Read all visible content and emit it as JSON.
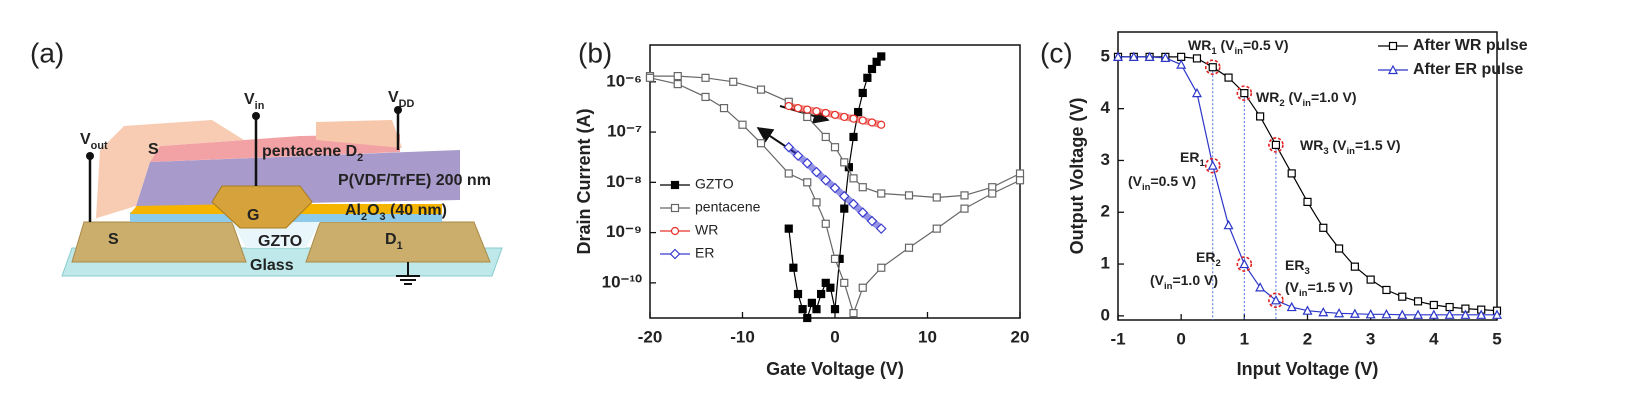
{
  "diagram": {
    "panel_label": "(a)",
    "labels": [
      [
        {
          "text": "V"
        },
        {
          "text": "out",
          "sub": true
        }
      ],
      [
        {
          "text": "V"
        },
        {
          "text": "in",
          "sub": true
        }
      ],
      [
        {
          "text": "V"
        },
        {
          "text": "DD",
          "sub": true
        }
      ],
      [
        {
          "text": "S"
        }
      ],
      [
        {
          "text": "pentacene "
        },
        {
          "text": "D"
        },
        {
          "text": "2",
          "sub": true
        }
      ],
      [
        {
          "text": "P(VDF/TrFE) 200 nm"
        }
      ],
      [
        {
          "text": "G"
        }
      ],
      [
        {
          "text": "Al"
        },
        {
          "text": "2",
          "sub": true
        },
        {
          "text": "O"
        },
        {
          "text": "3",
          "sub": true
        },
        {
          "text": " (40 nm)"
        }
      ],
      [
        {
          "text": "S"
        }
      ],
      [
        {
          "text": "GZTO"
        }
      ],
      [
        {
          "text": "D"
        },
        {
          "text": "1",
          "sub": true
        }
      ],
      [
        {
          "text": "Glass"
        }
      ]
    ]
  },
  "chart_data": [
    {
      "type": "line",
      "panel_label": "(b)",
      "x_label": "Gate Voltage (V)",
      "y_label": "Drain Current (A)",
      "xlim": [
        -20,
        20
      ],
      "xticks": [
        -20,
        -10,
        0,
        10,
        20
      ],
      "ylim": [
        2e-11,
        5.4e-06
      ],
      "y_scale": "log",
      "yticks": [
        {
          "value": 1e-10,
          "label": "10⁻¹⁰"
        },
        {
          "value": 1e-09,
          "label": "10⁻⁹"
        },
        {
          "value": 1e-08,
          "label": "10⁻⁸"
        },
        {
          "value": 1e-07,
          "label": "10⁻⁷"
        },
        {
          "value": 1e-06,
          "label": "10⁻⁶"
        }
      ],
      "legend": "left",
      "series": [
        {
          "name": "GZTO",
          "color": "#000000",
          "marker": "square-filled",
          "x": [
            -5,
            -4.5,
            -4,
            -3.5,
            -3,
            -2.5,
            -2,
            -1.5,
            -1,
            -0.5,
            0,
            0.5,
            1,
            1.5,
            2,
            2.5,
            3,
            3.5,
            4,
            4.5,
            5
          ],
          "values": [
            1.2e-09,
            2e-10,
            6e-11,
            3e-11,
            2e-11,
            4e-11,
            3e-11,
            6e-11,
            1e-10,
            8e-11,
            3e-11,
            3e-10,
            3e-09,
            2e-08,
            8e-08,
            2.5e-07,
            6e-07,
            1.2e-06,
            1.8e-06,
            2.5e-06,
            3.2e-06
          ]
        },
        {
          "name": "pentacene",
          "color": "#666666",
          "marker": "square-open",
          "x": [
            -20,
            -17,
            -14,
            -11,
            -8,
            -5,
            -3,
            -1,
            0,
            1,
            2,
            3,
            5,
            8,
            11,
            14,
            17,
            20,
            20,
            17,
            14,
            11,
            8,
            5,
            3,
            2,
            1,
            0,
            -1,
            -2,
            -3,
            -5,
            -8,
            -10,
            -12,
            -14,
            -17,
            -20
          ],
          "values": [
            1.3e-06,
            1.3e-06,
            1.2e-06,
            1e-06,
            7e-07,
            4e-07,
            2e-07,
            8e-08,
            5e-08,
            2.5e-08,
            1.2e-08,
            8e-09,
            6e-09,
            5.5e-09,
            5e-09,
            5.5e-09,
            8e-09,
            1.5e-08,
            1.1e-08,
            6e-09,
            3e-09,
            1.2e-09,
            5e-10,
            2e-10,
            8e-11,
            2.5e-11,
            1e-10,
            3e-10,
            1.5e-09,
            4e-09,
            1e-08,
            1.5e-08,
            6e-08,
            1.4e-07,
            3e-07,
            5e-07,
            9e-07,
            1.2e-06
          ]
        },
        {
          "name": "WR",
          "color": "#e8302a",
          "marker": "circle-open",
          "x": [
            -5,
            -4,
            -3,
            -2,
            -1,
            0,
            1,
            2,
            3,
            4,
            5
          ],
          "values": [
            3.3e-07,
            3e-07,
            2.8e-07,
            2.6e-07,
            2.4e-07,
            2.2e-07,
            2e-07,
            1.85e-07,
            1.7e-07,
            1.55e-07,
            1.4e-07
          ]
        },
        {
          "name": "ER",
          "color": "#3a3ad0",
          "marker": "diamond-open",
          "x": [
            -5,
            -4,
            -3,
            -2,
            -1,
            0,
            1,
            2,
            3,
            4,
            5
          ],
          "values": [
            5e-08,
            3.4e-08,
            2.4e-08,
            1.6e-08,
            1.1e-08,
            7.7e-09,
            5.3e-09,
            3.7e-09,
            2.5e-09,
            1.7e-09,
            1.2e-09
          ]
        }
      ]
    },
    {
      "type": "line",
      "panel_label": "(c)",
      "x_label": "Input Voltage (V)",
      "y_label": "Output Voltage (V)",
      "xlim": [
        -1,
        5
      ],
      "xticks": [
        -1,
        0,
        1,
        2,
        3,
        4,
        5
      ],
      "ylim": [
        -0.08,
        5.48
      ],
      "yticks": [
        0,
        1,
        2,
        3,
        4,
        5
      ],
      "legend": "upper right",
      "highlight_x": [
        0.5,
        1,
        1.5
      ],
      "series": [
        {
          "name": "After WR pulse",
          "color": "#000000",
          "marker": "square-open",
          "x": [
            -1,
            -0.75,
            -0.5,
            -0.25,
            0,
            0.25,
            0.5,
            0.75,
            1,
            1.25,
            1.5,
            1.75,
            2,
            2.25,
            2.5,
            2.75,
            3,
            3.25,
            3.5,
            3.75,
            4,
            4.25,
            4.5,
            4.75,
            5
          ],
          "values": [
            5,
            5,
            5,
            5,
            5,
            4.97,
            4.8,
            4.6,
            4.3,
            3.85,
            3.3,
            2.75,
            2.2,
            1.7,
            1.3,
            0.95,
            0.7,
            0.5,
            0.37,
            0.28,
            0.21,
            0.17,
            0.14,
            0.12,
            0.1
          ]
        },
        {
          "name": "After ER pulse",
          "color": "#2b35c8",
          "marker": "triangle-open",
          "x": [
            -1,
            -0.75,
            -0.5,
            -0.25,
            0,
            0.25,
            0.5,
            0.75,
            1,
            1.25,
            1.5,
            1.75,
            2,
            2.25,
            2.5,
            2.75,
            3,
            3.25,
            3.5,
            3.75,
            4,
            4.25,
            4.5,
            4.75,
            5
          ],
          "values": [
            5,
            5,
            5,
            4.98,
            4.85,
            4.3,
            2.9,
            1.75,
            1,
            0.55,
            0.3,
            0.17,
            0.1,
            0.07,
            0.05,
            0.04,
            0.03,
            0.03,
            0.02,
            0.02,
            0.02,
            0.02,
            0.02,
            0.02,
            0.02
          ]
        }
      ],
      "annotations": [
        [
          [
            {
              "text": "WR"
            },
            {
              "text": "1",
              "sub": true
            },
            {
              "text": " (V"
            },
            {
              "text": "in",
              "sub": true
            },
            {
              "text": "=0.5 V)"
            }
          ]
        ],
        [
          [
            {
              "text": "WR"
            },
            {
              "text": "2",
              "sub": true
            },
            {
              "text": " (V"
            },
            {
              "text": "in",
              "sub": true
            },
            {
              "text": "=1.0 V)"
            }
          ]
        ],
        [
          [
            {
              "text": "WR"
            },
            {
              "text": "3",
              "sub": true
            },
            {
              "text": " (V"
            },
            {
              "text": "in",
              "sub": true
            },
            {
              "text": "=1.5 V)"
            }
          ]
        ],
        [
          [
            {
              "text": "ER"
            },
            {
              "text": "1",
              "sub": true
            }
          ],
          [
            {
              "text": "(V"
            },
            {
              "text": "in",
              "sub": true
            },
            {
              "text": "=0.5 V)"
            }
          ]
        ],
        [
          [
            {
              "text": "ER"
            },
            {
              "text": "2",
              "sub": true
            }
          ],
          [
            {
              "text": "(V"
            },
            {
              "text": "in",
              "sub": true
            },
            {
              "text": "=1.0 V)"
            }
          ]
        ],
        [
          [
            {
              "text": "ER"
            },
            {
              "text": "3",
              "sub": true
            }
          ],
          [
            {
              "text": "(V"
            },
            {
              "text": "in",
              "sub": true
            },
            {
              "text": "=1.5 V)"
            }
          ]
        ]
      ]
    }
  ]
}
